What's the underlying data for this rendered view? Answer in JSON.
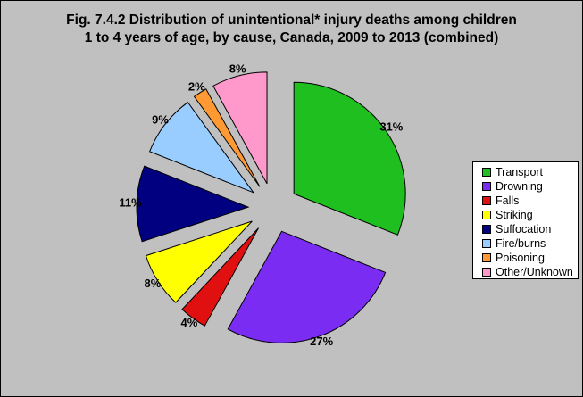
{
  "chart_data": {
    "type": "pie",
    "title_lines": [
      "Fig. 7.4.2 Distribution of unintentional* injury deaths among children",
      "1 to 4 years of age, by cause, Canada, 2009 to 2013 (combined)"
    ],
    "categories": [
      "Transport",
      "Drowning",
      "Falls",
      "Striking",
      "Suffocation",
      "Fire/burns",
      "Poisoning",
      "Other/Unknown"
    ],
    "values": [
      31,
      27,
      4,
      8,
      11,
      9,
      2,
      8
    ],
    "data_labels": [
      "31%",
      "27%",
      "4%",
      "8%",
      "11%",
      "9%",
      "2%",
      "8%"
    ],
    "colors": [
      "#1fbf1f",
      "#7a2cf2",
      "#e01010",
      "#ffff00",
      "#000080",
      "#99ccff",
      "#ff9933",
      "#ff99cc"
    ],
    "exploded": true,
    "legend_position": "right"
  }
}
